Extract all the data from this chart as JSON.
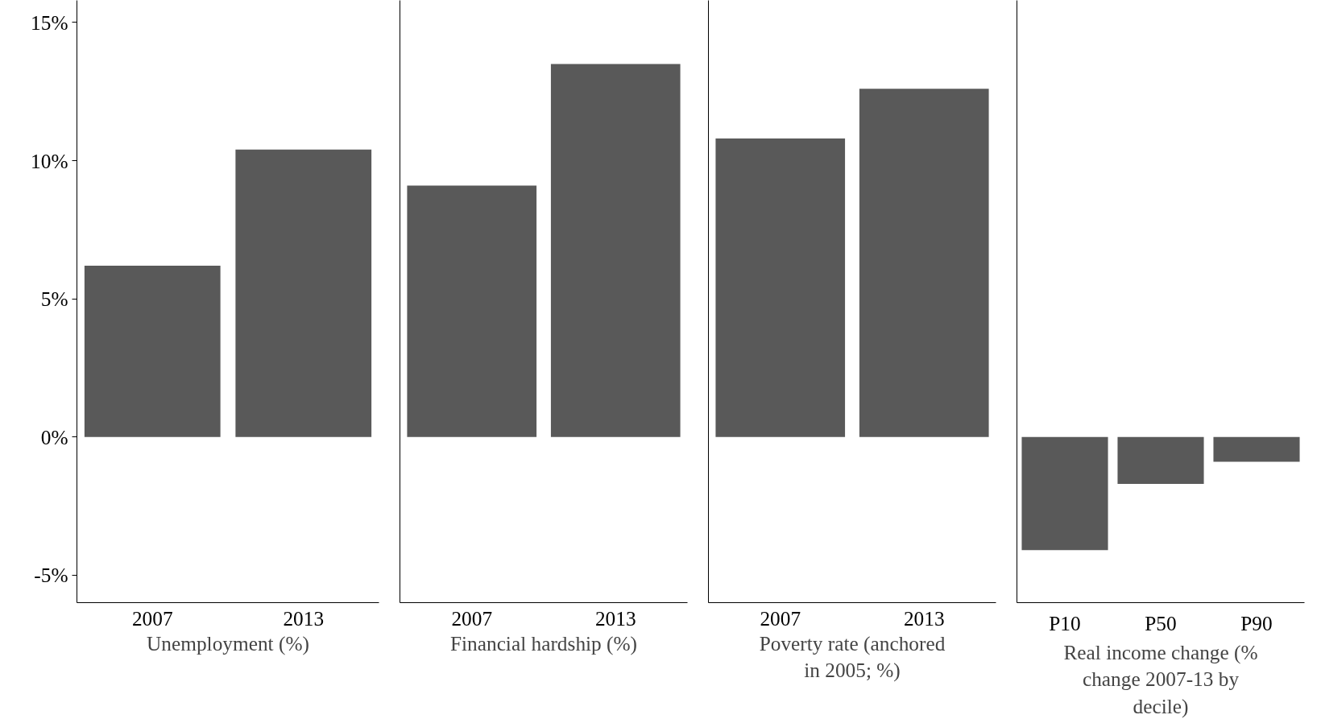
{
  "chart_data": [
    {
      "type": "bar",
      "xlabel": "Unemployment (%)",
      "categories": [
        "2007",
        "2013"
      ],
      "values": [
        6.2,
        10.4
      ],
      "color": "#595959",
      "ylim": [
        -6,
        15.8
      ],
      "yticks": [
        {
          "value": -5,
          "label": "-5%"
        },
        {
          "value": 0,
          "label": "0%"
        },
        {
          "value": 5,
          "label": "5%"
        },
        {
          "value": 10,
          "label": "10%"
        },
        {
          "value": 15,
          "label": "15%"
        }
      ],
      "grid": false
    },
    {
      "type": "bar",
      "xlabel": "Financial hardship (%)",
      "categories": [
        "2007",
        "2013"
      ],
      "values": [
        9.1,
        13.5
      ],
      "color": "#595959",
      "ylim": [
        -6,
        15.8
      ],
      "yticks": [
        {
          "value": -5,
          "label": "-5%"
        },
        {
          "value": 0,
          "label": "0%"
        },
        {
          "value": 5,
          "label": "5%"
        },
        {
          "value": 10,
          "label": "10%"
        },
        {
          "value": 15,
          "label": "15%"
        }
      ],
      "tick_labels": "x",
      "grid": false
    },
    {
      "type": "bar",
      "xlabel": "Poverty rate (anchored in 2005; %)",
      "categories": [
        "2007",
        "2013"
      ],
      "values": [
        10.8,
        12.6
      ],
      "color": "#595959",
      "ylim": [
        -6,
        15.8
      ],
      "yticks": [
        {
          "value": -5,
          "label": "-5%"
        },
        {
          "value": 0,
          "label": "0%"
        },
        {
          "value": 5,
          "label": "5%"
        },
        {
          "value": 10,
          "label": "10%"
        },
        {
          "value": 15,
          "label": "15%"
        }
      ],
      "tick_labels": "x",
      "grid": false
    },
    {
      "type": "bar",
      "xlabel": "Real income change (% change 2007-13 by decile)",
      "categories": [
        "P10",
        "P50",
        "P90"
      ],
      "values": [
        -4.1,
        -1.7,
        -0.9
      ],
      "color": "#595959",
      "ylim": [
        -6,
        15.8
      ],
      "yticks": [
        {
          "value": -5,
          "label": "-5%"
        },
        {
          "value": 0,
          "label": "0%"
        },
        {
          "value": 5,
          "label": "5%"
        },
        {
          "value": 10,
          "label": "10%"
        },
        {
          "value": 15,
          "label": "15%"
        }
      ],
      "tick_labels": "x",
      "grid": false
    }
  ]
}
